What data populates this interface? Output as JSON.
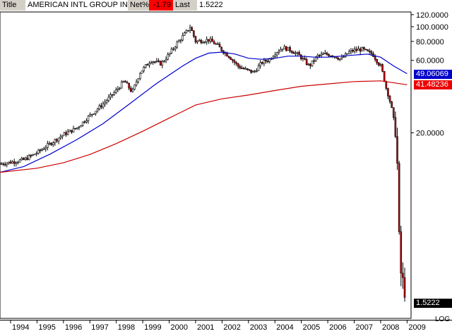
{
  "header": {
    "title_label": "Title",
    "title_value": "AMERICAN INTL GROUP INC",
    "net_label": "Net%",
    "net_value": "-1.79",
    "last_label": "Last",
    "last_value": "1.5222"
  },
  "scale_label": "LOG",
  "colors": {
    "candle_up": "#000000",
    "candle_down": "#cc0000",
    "ma_short": "#0000cc",
    "ma_long": "#cc0000",
    "label_blue": "#0000cc",
    "label_red": "#ee0000",
    "label_last": "#000000",
    "axis_bg": "#ffffff"
  },
  "chart_data": {
    "type": "line",
    "yscale": "log",
    "ylim": [
      1.2,
      125
    ],
    "xlim": [
      1993.6,
      2009.15
    ],
    "y_ticks": [
      {
        "value": 120,
        "label": "120.0000"
      },
      {
        "value": 100,
        "label": "100.0000"
      },
      {
        "value": 80,
        "label": "80.0000"
      },
      {
        "value": 60,
        "label": "60.0000"
      },
      {
        "value": 20,
        "label": "20.0000"
      }
    ],
    "x_ticks": [
      {
        "value": 1994,
        "label": "1994"
      },
      {
        "value": 1995,
        "label": "1995"
      },
      {
        "value": 1996,
        "label": "1996"
      },
      {
        "value": 1997,
        "label": "1997"
      },
      {
        "value": 1998,
        "label": "1998"
      },
      {
        "value": 1999,
        "label": "1999"
      },
      {
        "value": 2000,
        "label": "2000"
      },
      {
        "value": 2001,
        "label": "2001"
      },
      {
        "value": 2002,
        "label": "2002"
      },
      {
        "value": 2003,
        "label": "2003"
      },
      {
        "value": 2004,
        "label": "2004"
      },
      {
        "value": 2005,
        "label": "2005"
      },
      {
        "value": 2006,
        "label": "2006"
      },
      {
        "value": 2007,
        "label": "2007"
      },
      {
        "value": 2008,
        "label": "2008"
      },
      {
        "value": 2009,
        "label": "2009"
      }
    ],
    "price_path": [
      [
        1993.6,
        12.5
      ],
      [
        1994.0,
        12.8
      ],
      [
        1994.5,
        13.3
      ],
      [
        1995.0,
        14.8
      ],
      [
        1995.5,
        17.0
      ],
      [
        1996.0,
        19.5
      ],
      [
        1996.5,
        21.5
      ],
      [
        1997.0,
        26.0
      ],
      [
        1997.5,
        31.0
      ],
      [
        1998.0,
        38.0
      ],
      [
        1998.3,
        44.0
      ],
      [
        1998.6,
        37.0
      ],
      [
        1998.9,
        50.0
      ],
      [
        1999.3,
        60.0
      ],
      [
        1999.7,
        57.0
      ],
      [
        2000.0,
        66.0
      ],
      [
        2000.3,
        78.0
      ],
      [
        2000.6,
        90.0
      ],
      [
        2000.8,
        100.0
      ],
      [
        2001.0,
        80.0
      ],
      [
        2001.5,
        82.0
      ],
      [
        2001.8,
        76.0
      ],
      [
        2002.0,
        70.0
      ],
      [
        2002.3,
        63.0
      ],
      [
        2002.6,
        55.0
      ],
      [
        2002.9,
        52.0
      ],
      [
        2003.2,
        50.0
      ],
      [
        2003.5,
        58.0
      ],
      [
        2003.8,
        61.0
      ],
      [
        2004.0,
        67.0
      ],
      [
        2004.3,
        73.0
      ],
      [
        2004.6,
        70.0
      ],
      [
        2004.9,
        65.0
      ],
      [
        2005.1,
        60.0
      ],
      [
        2005.3,
        55.0
      ],
      [
        2005.6,
        64.0
      ],
      [
        2005.9,
        66.0
      ],
      [
        2006.2,
        65.0
      ],
      [
        2006.5,
        61.0
      ],
      [
        2006.8,
        68.0
      ],
      [
        2007.0,
        70.0
      ],
      [
        2007.3,
        71.0
      ],
      [
        2007.5,
        68.0
      ],
      [
        2007.7,
        66.0
      ],
      [
        2007.9,
        58.0
      ],
      [
        2008.0,
        55.0
      ],
      [
        2008.1,
        48.0
      ],
      [
        2008.2,
        40.0
      ],
      [
        2008.3,
        35.0
      ],
      [
        2008.4,
        30.0
      ],
      [
        2008.5,
        24.0
      ],
      [
        2008.6,
        20.0
      ],
      [
        2008.7,
        4.0
      ],
      [
        2008.75,
        2.5
      ],
      [
        2008.8,
        2.2
      ],
      [
        2008.9,
        1.9
      ],
      [
        2009.0,
        1.5222
      ]
    ],
    "series": [
      {
        "values": [
          [
            1993.6,
            11.0
          ],
          [
            1994.5,
            12.0
          ],
          [
            1995.5,
            14.5
          ],
          [
            1996.5,
            18.0
          ],
          [
            1997.5,
            23.0
          ],
          [
            1998.5,
            31.0
          ],
          [
            1999.5,
            42.0
          ],
          [
            2000.5,
            55.0
          ],
          [
            2001.0,
            62.0
          ],
          [
            2001.5,
            67.0
          ],
          [
            2002.0,
            68.0
          ],
          [
            2002.5,
            66.0
          ],
          [
            2003.0,
            62.0
          ],
          [
            2003.5,
            61.0
          ],
          [
            2004.0,
            62.0
          ],
          [
            2004.5,
            64.0
          ],
          [
            2005.0,
            64.0
          ],
          [
            2005.5,
            63.0
          ],
          [
            2006.0,
            63.0
          ],
          [
            2006.5,
            64.0
          ],
          [
            2007.0,
            65.0
          ],
          [
            2007.5,
            66.0
          ],
          [
            2008.0,
            63.0
          ],
          [
            2008.5,
            55.0
          ],
          [
            2009.0,
            49.06069
          ]
        ]
      },
      {
        "values": [
          [
            1993.6,
            11.0
          ],
          [
            1995.0,
            11.7
          ],
          [
            1996.0,
            12.7
          ],
          [
            1997.0,
            14.4
          ],
          [
            1998.0,
            17.0
          ],
          [
            1999.0,
            20.5
          ],
          [
            2000.0,
            25.0
          ],
          [
            2001.0,
            30.5
          ],
          [
            2002.0,
            33.5
          ],
          [
            2003.0,
            35.5
          ],
          [
            2004.0,
            38.0
          ],
          [
            2005.0,
            40.5
          ],
          [
            2006.0,
            42.0
          ],
          [
            2007.0,
            43.5
          ],
          [
            2008.0,
            44.0
          ],
          [
            2009.0,
            41.48236
          ]
        ]
      }
    ],
    "level_labels": [
      {
        "value": 49.06069,
        "label": "49.06069",
        "color_key": "label_blue"
      },
      {
        "value": 41.48236,
        "label": "41.48236",
        "color_key": "label_red"
      },
      {
        "value": 1.5222,
        "label": "1.5222",
        "color_key": "label_last"
      }
    ]
  }
}
